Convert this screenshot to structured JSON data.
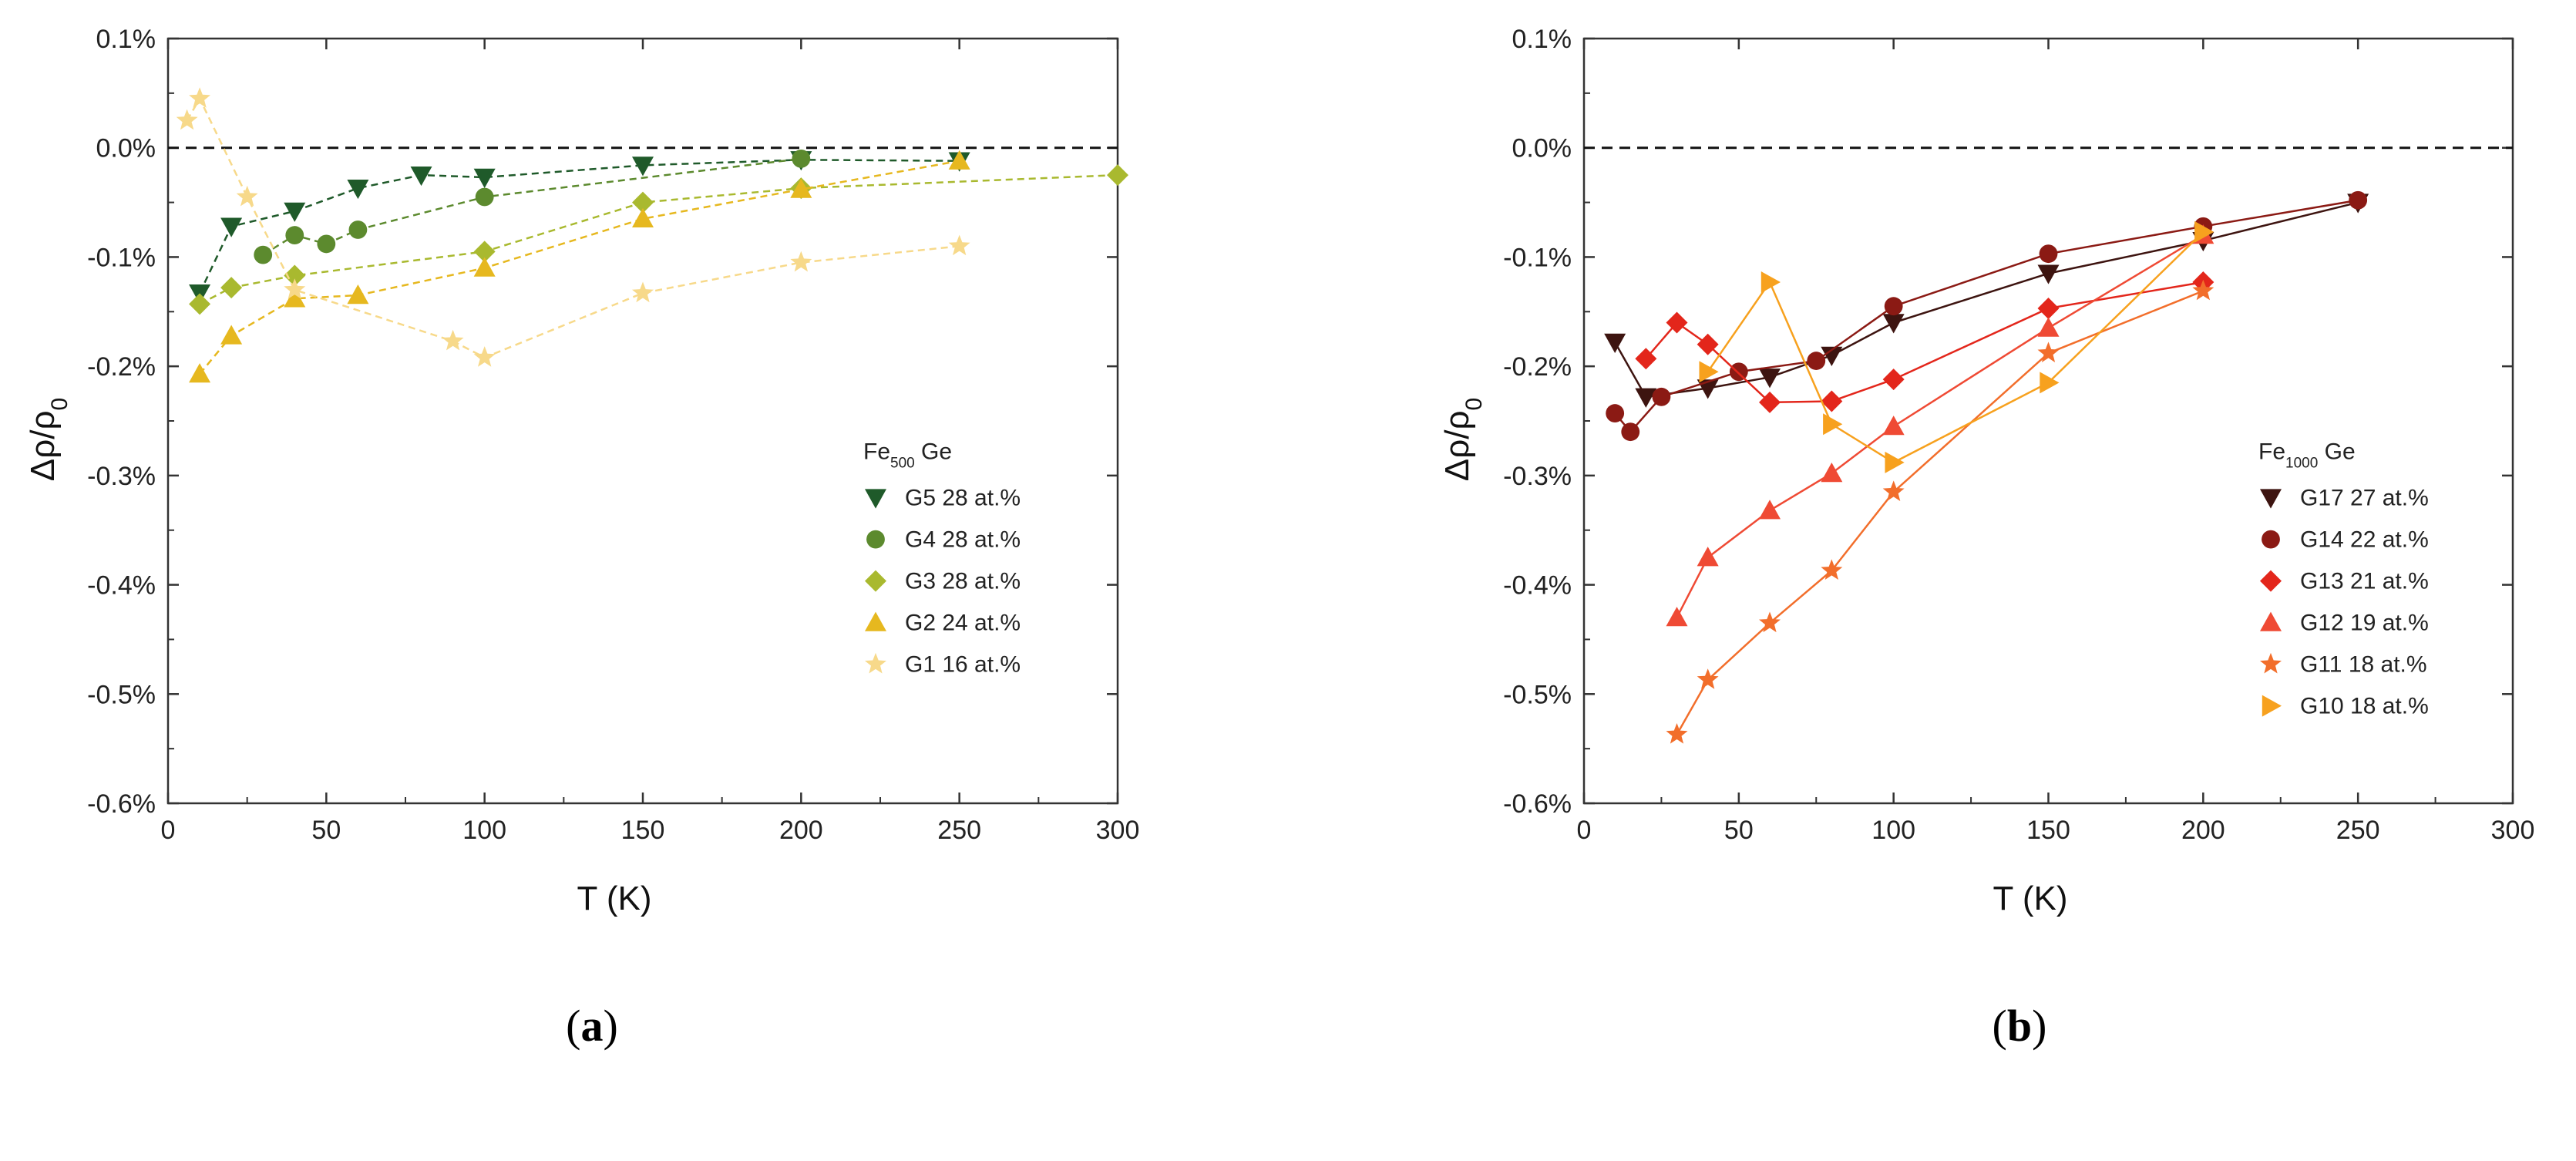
{
  "chart_data": [
    {
      "type": "line",
      "panel": "a",
      "caption_letter": "a",
      "xlabel": "T (K)",
      "ylabel": "Δρ/ρ",
      "ylabel_sub": "0",
      "xlim": [
        0,
        300
      ],
      "ylim": [
        -0.6,
        0.1
      ],
      "x_ticks": [
        0,
        50,
        100,
        150,
        200,
        250,
        300
      ],
      "x_tick_labels": [
        "0",
        "50",
        "100",
        "150",
        "200",
        "250",
        "300"
      ],
      "y_ticks": [
        0.1,
        0.0,
        -0.1,
        -0.2,
        -0.3,
        -0.4,
        -0.5,
        -0.6
      ],
      "y_tick_labels": [
        "0.1%",
        "0.0%",
        "-0.1%",
        "-0.2%",
        "-0.3%",
        "-0.4%",
        "-0.5%",
        "-0.6%"
      ],
      "reference_line": 0.0,
      "line_style": "dashed",
      "legend_position": "bottom-right",
      "legend_title": "Fe",
      "legend_title_sub": "500",
      "legend_title_rest": " Ge",
      "series": [
        {
          "name": "G5 28 at.%",
          "marker": "triangle-down",
          "color": "#1f5a2a",
          "x": [
            10,
            20,
            40,
            60,
            80,
            100,
            150,
            200,
            250
          ],
          "y": [
            -0.133,
            -0.072,
            -0.058,
            -0.037,
            -0.025,
            -0.027,
            -0.016,
            -0.011,
            -0.012
          ]
        },
        {
          "name": "G4 28 at.%",
          "marker": "circle",
          "color": "#5c8a2e",
          "x": [
            30,
            40,
            50,
            60,
            100,
            200
          ],
          "y": [
            -0.098,
            -0.08,
            -0.088,
            -0.075,
            -0.045,
            -0.01
          ]
        },
        {
          "name": "G3 28 at.%",
          "marker": "diamond",
          "color": "#a9b92f",
          "x": [
            10,
            20,
            40,
            100,
            150,
            200,
            300
          ],
          "y": [
            -0.143,
            -0.128,
            -0.117,
            -0.095,
            -0.05,
            -0.037,
            -0.025
          ]
        },
        {
          "name": "G2 24 at.%",
          "marker": "triangle-up",
          "color": "#e6b81f",
          "x": [
            10,
            20,
            40,
            60,
            100,
            150,
            200,
            250
          ],
          "y": [
            -0.207,
            -0.172,
            -0.138,
            -0.135,
            -0.11,
            -0.065,
            -0.038,
            -0.012
          ]
        },
        {
          "name": "G1 16 at.%",
          "marker": "star",
          "color": "#f7d98a",
          "x": [
            6,
            10,
            25,
            40,
            90,
            100,
            150,
            200,
            250
          ],
          "y": [
            0.025,
            0.045,
            -0.045,
            -0.13,
            -0.177,
            -0.192,
            -0.133,
            -0.105,
            -0.09
          ]
        }
      ]
    },
    {
      "type": "line",
      "panel": "b",
      "caption_letter": "b",
      "xlabel": "T (K)",
      "ylabel": "Δρ/ρ",
      "ylabel_sub": "0",
      "xlim": [
        0,
        300
      ],
      "ylim": [
        -0.6,
        0.1
      ],
      "x_ticks": [
        0,
        50,
        100,
        150,
        200,
        250,
        300
      ],
      "x_tick_labels": [
        "0",
        "50",
        "100",
        "150",
        "200",
        "250",
        "300"
      ],
      "y_ticks": [
        0.1,
        0.0,
        -0.1,
        -0.2,
        -0.3,
        -0.4,
        -0.5,
        -0.6
      ],
      "y_tick_labels": [
        "0.1%",
        "0.0%",
        "-0.1%",
        "-0.2%",
        "-0.3%",
        "-0.4%",
        "-0.5%",
        "-0.6%"
      ],
      "reference_line": 0.0,
      "line_style": "solid",
      "legend_position": "bottom-right",
      "legend_title": "Fe",
      "legend_title_sub": "1000",
      "legend_title_rest": " Ge",
      "series": [
        {
          "name": "G17 27 at.%",
          "marker": "triangle-down",
          "color": "#3d1410",
          "x": [
            10,
            20,
            40,
            60,
            80,
            100,
            150,
            200,
            250
          ],
          "y": [
            -0.178,
            -0.228,
            -0.22,
            -0.21,
            -0.19,
            -0.16,
            -0.115,
            -0.085,
            -0.05
          ]
        },
        {
          "name": "G14 22 at.%",
          "marker": "circle",
          "color": "#8b1a14",
          "x": [
            10,
            15,
            25,
            50,
            75,
            100,
            150,
            200,
            250
          ],
          "y": [
            -0.243,
            -0.26,
            -0.228,
            -0.205,
            -0.195,
            -0.145,
            -0.097,
            -0.072,
            -0.048
          ]
        },
        {
          "name": "G13 21 at.%",
          "marker": "diamond",
          "color": "#e3261b",
          "x": [
            20,
            30,
            40,
            60,
            80,
            100,
            150,
            200
          ],
          "y": [
            -0.193,
            -0.16,
            -0.18,
            -0.233,
            -0.232,
            -0.212,
            -0.147,
            -0.123
          ]
        },
        {
          "name": "G12 19 at.%",
          "marker": "triangle-up",
          "color": "#ef4a34",
          "x": [
            30,
            40,
            60,
            80,
            100,
            150,
            200
          ],
          "y": [
            -0.43,
            -0.375,
            -0.332,
            -0.298,
            -0.255,
            -0.165,
            -0.08
          ]
        },
        {
          "name": "G11 18 at.%",
          "marker": "star",
          "color": "#f26e2b",
          "x": [
            30,
            40,
            60,
            80,
            100,
            150,
            200
          ],
          "y": [
            -0.537,
            -0.487,
            -0.435,
            -0.387,
            -0.315,
            -0.188,
            -0.131
          ]
        },
        {
          "name": "G10 18 at.%",
          "marker": "triangle-right",
          "color": "#f7a11e",
          "x": [
            40,
            60,
            80,
            100,
            150,
            200
          ],
          "y": [
            -0.205,
            -0.123,
            -0.253,
            -0.288,
            -0.215,
            -0.077
          ]
        }
      ]
    }
  ]
}
